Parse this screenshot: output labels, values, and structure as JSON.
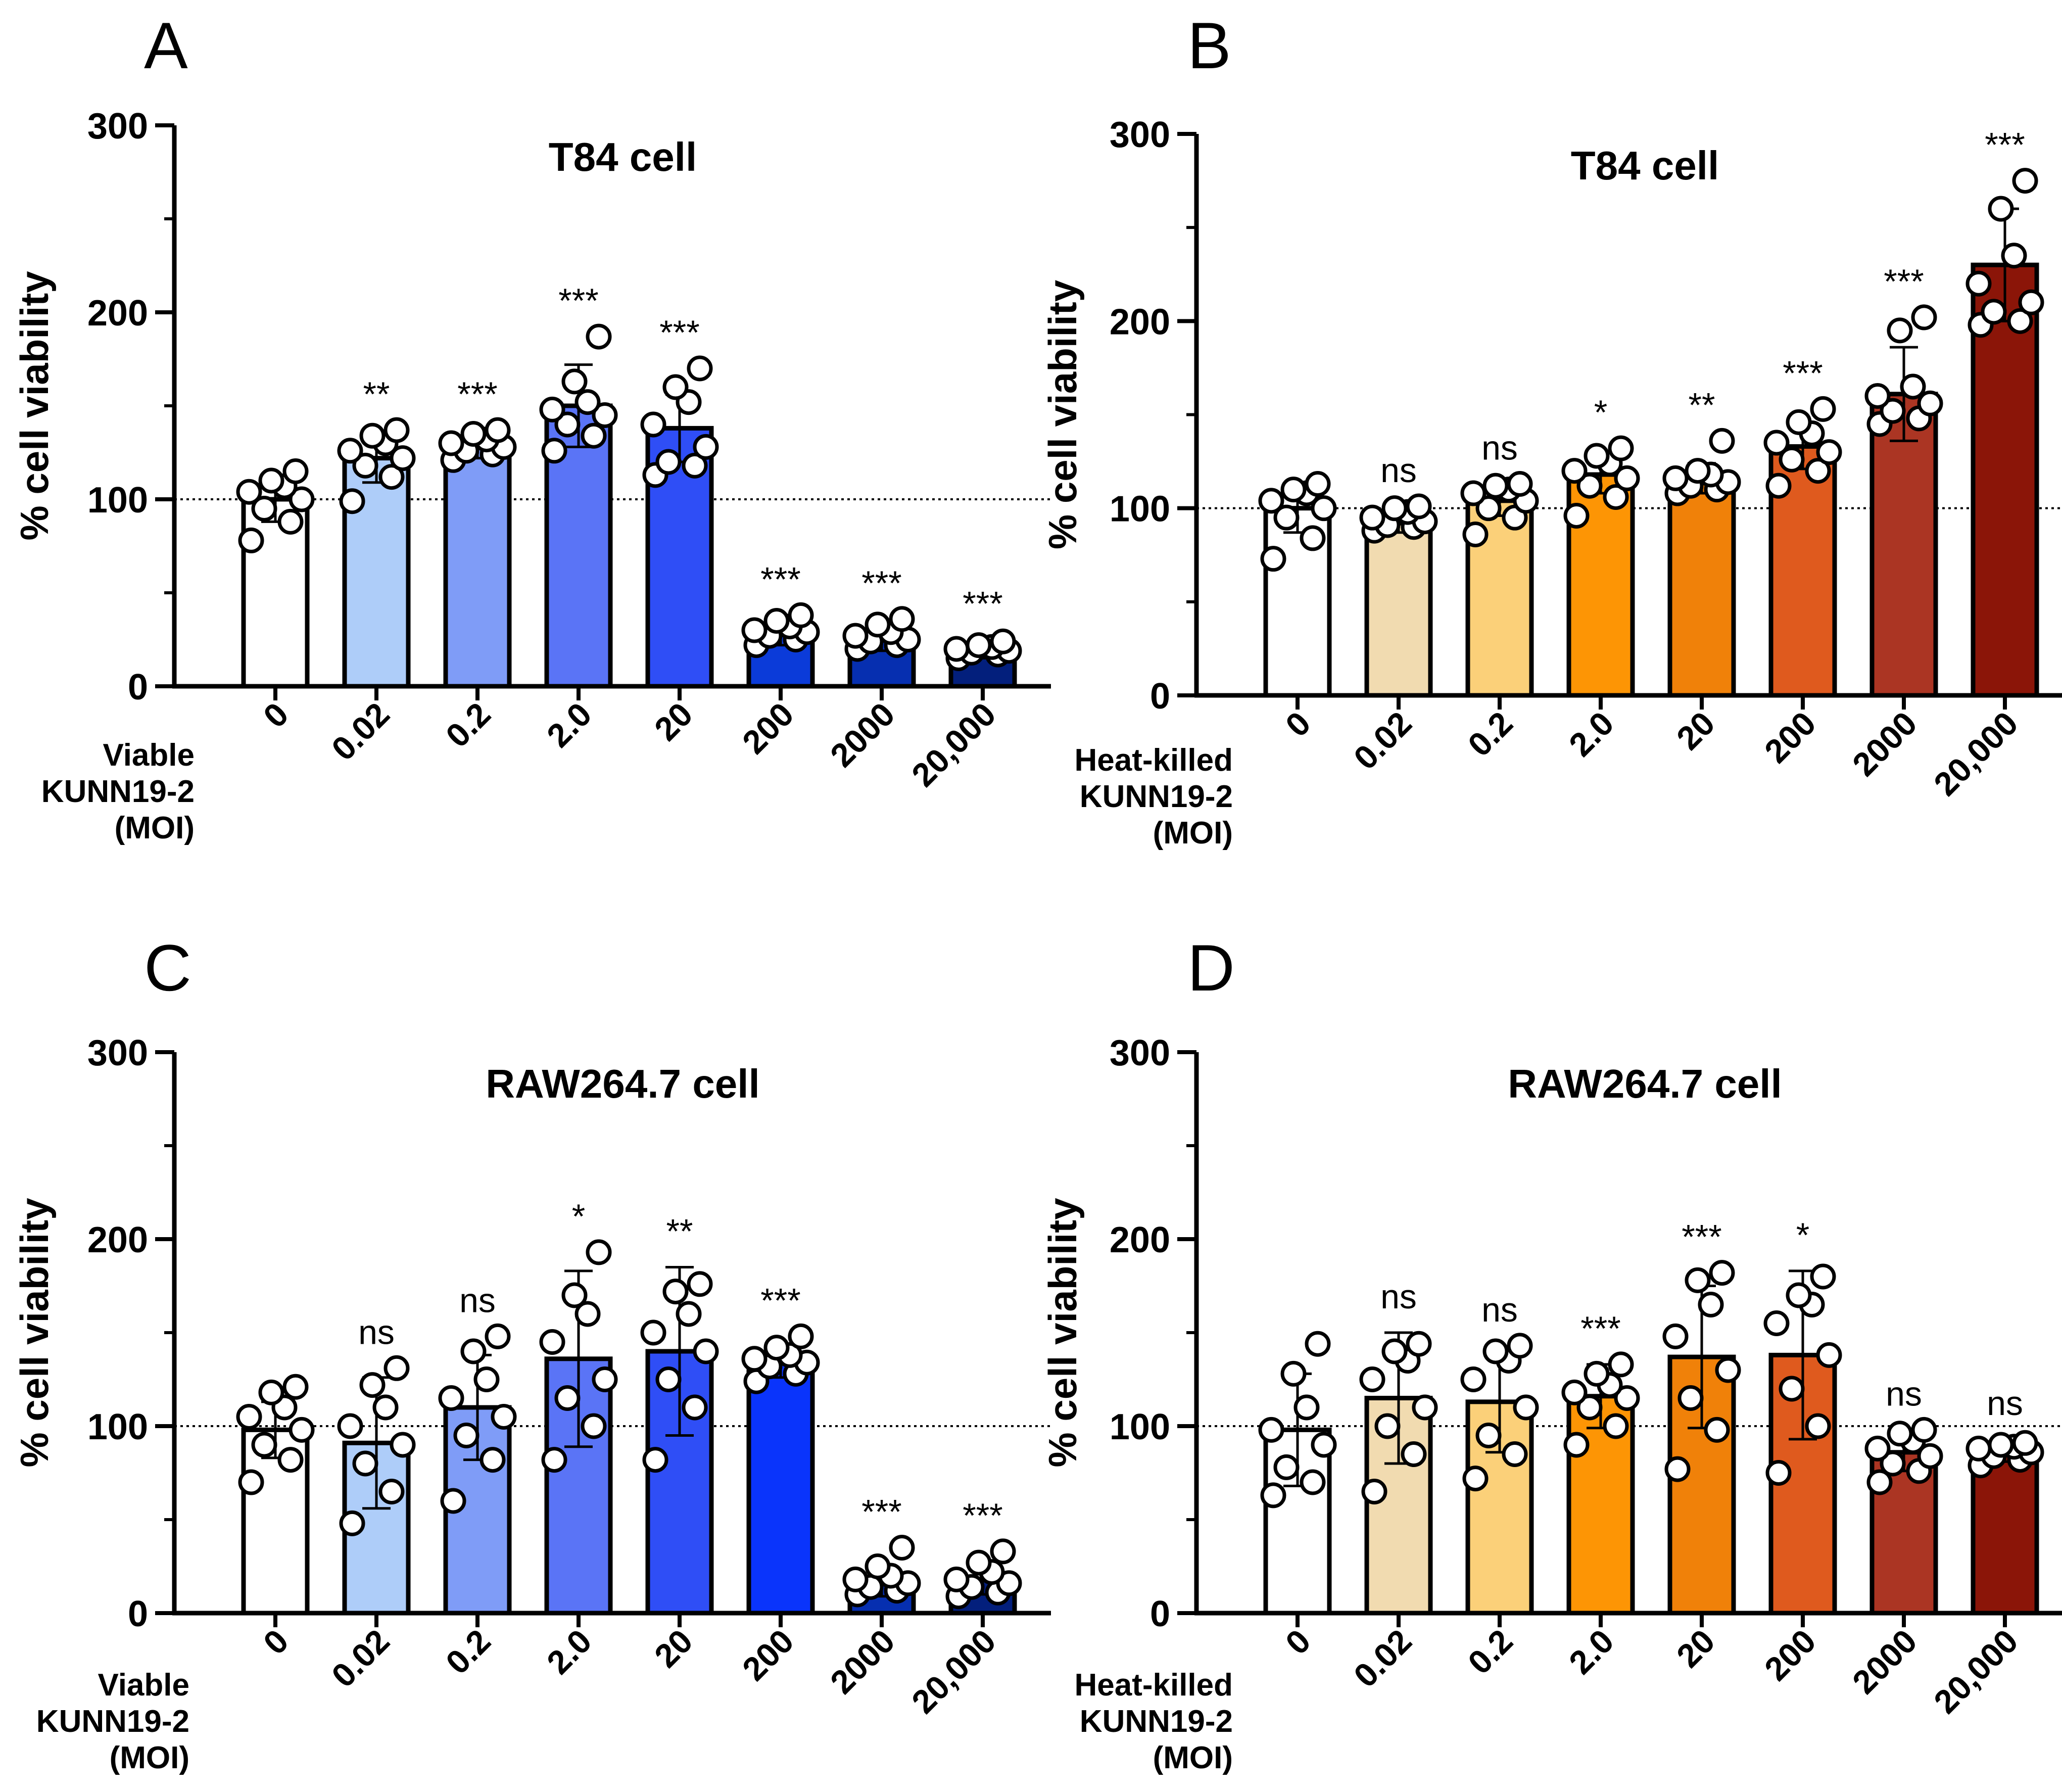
{
  "figure": {
    "panels": [
      "A",
      "B",
      "C",
      "D"
    ]
  },
  "chart_data": [
    {
      "panel": "A",
      "type": "bar",
      "title": "T84 cell",
      "ylabel": "% cell viability",
      "ylim": [
        0,
        300
      ],
      "yticks": [
        "0",
        "100",
        "200",
        "300"
      ],
      "reference_line": 100,
      "x_description": [
        "Viable",
        "KUNN19-2",
        "(MOI)"
      ],
      "categories": [
        "0",
        "0.02",
        "0.2",
        "2.0",
        "20",
        "200",
        "2000",
        "20,000"
      ],
      "values": [
        100,
        122,
        128,
        150,
        138,
        29,
        26,
        20
      ],
      "sd": [
        12,
        13,
        6,
        22,
        18,
        7,
        7,
        5
      ],
      "significance": [
        "",
        "**",
        "***",
        "***",
        "***",
        "***",
        "***",
        "***"
      ],
      "colors": [
        "#ffffff",
        "#aecdf9",
        "#7f9cf7",
        "#5a74f6",
        "#2f4ef6",
        "#0b3bd9",
        "#062fb0",
        "#031f7c"
      ],
      "points": [
        [
          78,
          88,
          95,
          100,
          104,
          107,
          110,
          115
        ],
        [
          99,
          112,
          118,
          122,
          126,
          130,
          134,
          137
        ],
        [
          121,
          124,
          126,
          128,
          130,
          132,
          135,
          137
        ],
        [
          126,
          134,
          140,
          145,
          148,
          152,
          163,
          187
        ],
        [
          113,
          118,
          120,
          128,
          140,
          152,
          160,
          170
        ],
        [
          22,
          25,
          27,
          29,
          30,
          32,
          35,
          38
        ],
        [
          20,
          22,
          24,
          25,
          27,
          29,
          33,
          36
        ],
        [
          15,
          17,
          18,
          19,
          20,
          21,
          22,
          24
        ]
      ]
    },
    {
      "panel": "B",
      "type": "bar",
      "title": "T84 cell",
      "ylabel": "% cell viability",
      "ylim": [
        0,
        300
      ],
      "yticks": [
        "0",
        "100",
        "200",
        "300"
      ],
      "reference_line": 100,
      "x_description": [
        "Heat-killed",
        "KUNN19-2",
        "(MOI)"
      ],
      "categories": [
        "0",
        "0.02",
        "0.2",
        "2.0",
        "20",
        "200",
        "2000",
        "20,000"
      ],
      "values": [
        100,
        92,
        104,
        118,
        116,
        133,
        161,
        230
      ],
      "sd": [
        13,
        5,
        8,
        10,
        8,
        12,
        25,
        30
      ],
      "significance": [
        "",
        "ns",
        "ns",
        "*",
        "**",
        "***",
        "***",
        "***"
      ],
      "colors": [
        "#ffffff",
        "#f1dbb0",
        "#fbd079",
        "#fd9505",
        "#f08109",
        "#df5a1e",
        "#ab3523",
        "#8b1508"
      ],
      "points": [
        [
          73,
          84,
          95,
          100,
          104,
          108,
          110,
          113
        ],
        [
          88,
          90,
          91,
          93,
          95,
          98,
          100,
          101
        ],
        [
          86,
          95,
          100,
          104,
          108,
          110,
          112,
          113
        ],
        [
          96,
          106,
          112,
          116,
          120,
          124,
          128,
          132
        ],
        [
          108,
          110,
          112,
          114,
          116,
          118,
          120,
          136
        ],
        [
          112,
          120,
          126,
          130,
          135,
          140,
          146,
          153
        ],
        [
          145,
          148,
          152,
          156,
          160,
          165,
          195,
          202
        ],
        [
          198,
          200,
          205,
          210,
          220,
          235,
          260,
          275
        ]
      ]
    },
    {
      "panel": "C",
      "type": "bar",
      "title": "RAW264.7 cell",
      "ylabel": "% cell viability",
      "ylim": [
        0,
        300
      ],
      "yticks": [
        "0",
        "100",
        "200",
        "300"
      ],
      "reference_line": 100,
      "x_description": [
        "Viable",
        "KUNN19-2",
        "(MOI)"
      ],
      "categories": [
        "0",
        "0.02",
        "0.2",
        "2.0",
        "20",
        "200",
        "2000",
        "20,000"
      ],
      "values": [
        98,
        91,
        110,
        136,
        140,
        135,
        17,
        18
      ],
      "sd": [
        15,
        35,
        28,
        47,
        45,
        9,
        8,
        8
      ],
      "significance": [
        "",
        "ns",
        "ns",
        "*",
        "**",
        "***",
        "***",
        "***"
      ],
      "colors": [
        "#ffffff",
        "#aecdf9",
        "#7f9cf7",
        "#5a74f6",
        "#2f4ef6",
        "#0a34fb",
        "#062fb0",
        "#031f7c"
      ],
      "points": [
        [
          70,
          82,
          90,
          98,
          105,
          110,
          118,
          121
        ],
        [
          48,
          65,
          80,
          90,
          100,
          110,
          122,
          131
        ],
        [
          60,
          82,
          95,
          105,
          115,
          125,
          140,
          148
        ],
        [
          82,
          100,
          115,
          125,
          145,
          160,
          170,
          193
        ],
        [
          82,
          110,
          125,
          140,
          150,
          160,
          172,
          176
        ],
        [
          124,
          128,
          132,
          134,
          136,
          138,
          142,
          148
        ],
        [
          10,
          12,
          14,
          16,
          18,
          20,
          25,
          35
        ],
        [
          9,
          11,
          14,
          16,
          18,
          22,
          27,
          33
        ]
      ]
    },
    {
      "panel": "D",
      "type": "bar",
      "title": "RAW264.7 cell",
      "ylabel": "% cell viability",
      "ylim": [
        0,
        300
      ],
      "yticks": [
        "0",
        "100",
        "200",
        "300"
      ],
      "reference_line": 100,
      "x_description": [
        "Heat-killed",
        "KUNN19-2",
        "(MOI)"
      ],
      "categories": [
        "0",
        "0.02",
        "0.2",
        "2.0",
        "20",
        "200",
        "2000",
        "20,000"
      ],
      "values": [
        98,
        115,
        113,
        116,
        137,
        138,
        86,
        87
      ],
      "sd": [
        30,
        35,
        27,
        17,
        38,
        45,
        10,
        6
      ],
      "significance": [
        "",
        "ns",
        "ns",
        "***",
        "***",
        "*",
        "ns",
        "ns"
      ],
      "colors": [
        "#ffffff",
        "#f1dbb0",
        "#fbd079",
        "#fd9505",
        "#f08109",
        "#df5a1e",
        "#ab3523",
        "#8b1508"
      ],
      "points": [
        [
          63,
          70,
          78,
          90,
          98,
          110,
          128,
          144
        ],
        [
          65,
          85,
          100,
          110,
          125,
          135,
          140,
          144
        ],
        [
          72,
          85,
          95,
          110,
          125,
          135,
          140,
          143
        ],
        [
          90,
          100,
          110,
          115,
          118,
          122,
          128,
          133
        ],
        [
          77,
          98,
          115,
          130,
          148,
          165,
          178,
          182
        ],
        [
          75,
          100,
          120,
          138,
          155,
          165,
          170,
          180
        ],
        [
          70,
          76,
          80,
          84,
          88,
          92,
          96,
          98
        ],
        [
          79,
          82,
          84,
          86,
          88,
          89,
          90,
          91
        ]
      ]
    }
  ]
}
